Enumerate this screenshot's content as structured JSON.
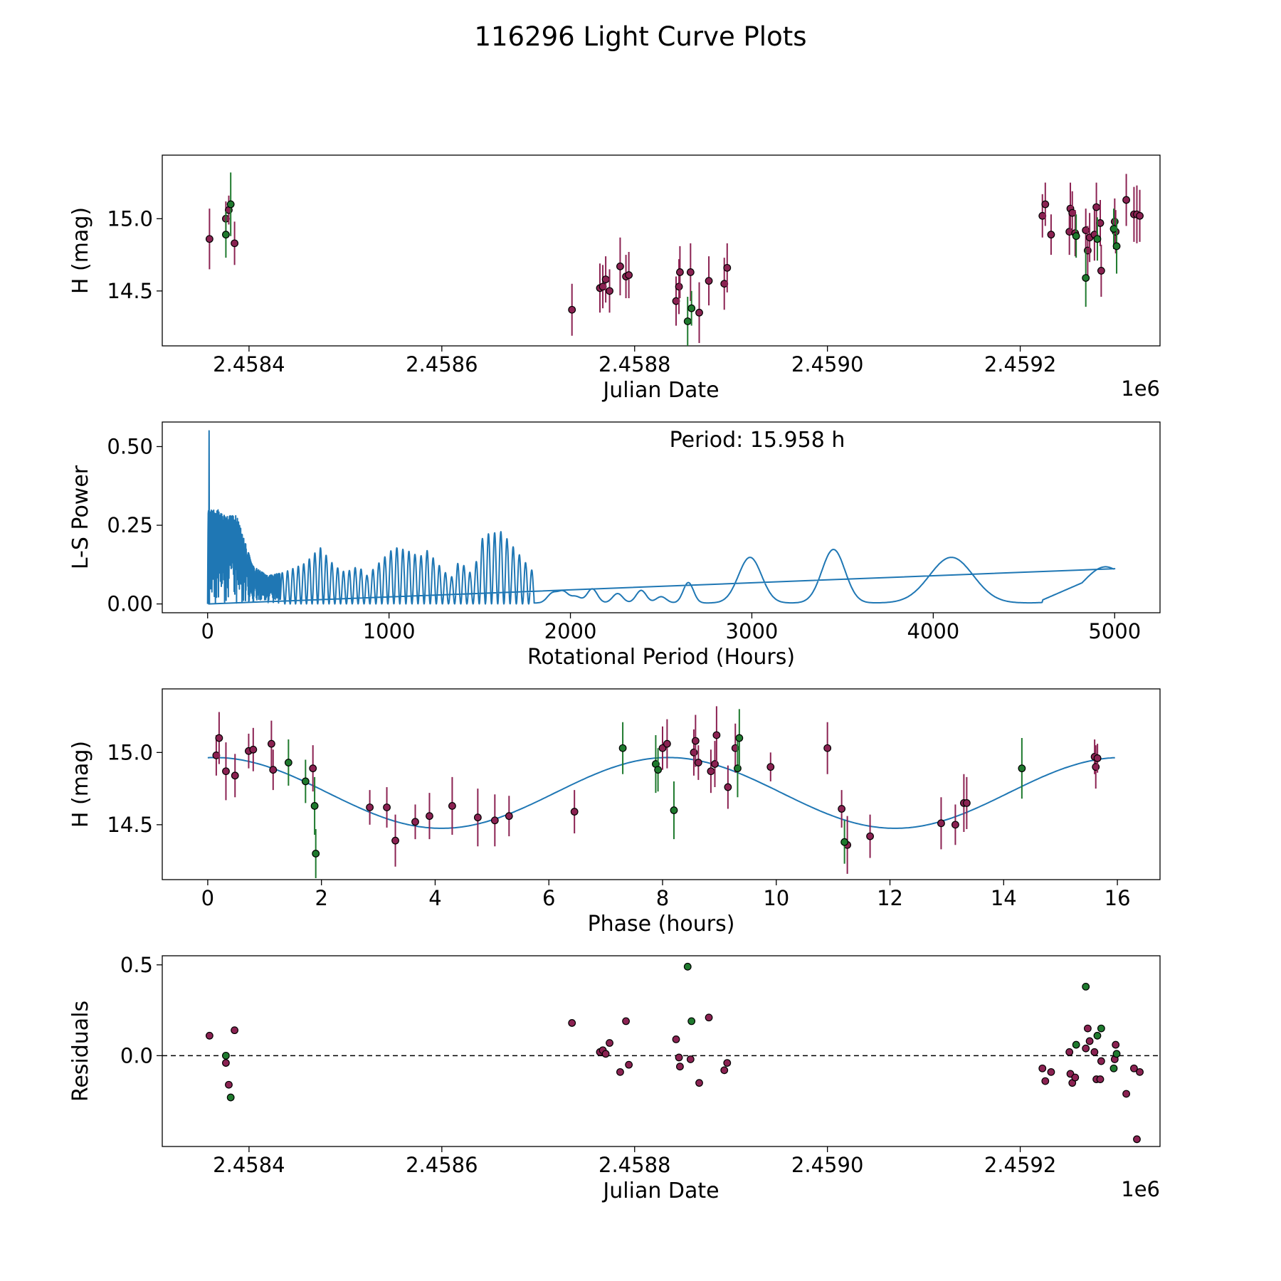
{
  "figure": {
    "title": "116296 Light Curve Plots",
    "colors": {
      "purple": "#8b2252",
      "green": "#1f7a2e",
      "line": "#1f77b4",
      "axis": "#000000"
    }
  },
  "chart_data": [
    {
      "id": "lightcurve",
      "type": "scatter",
      "title": "",
      "xlabel": "Julian Date",
      "ylabel": "H (mag)",
      "offset_label": "1e6",
      "xlim": [
        2458310,
        2459345
      ],
      "ylim": [
        14.12,
        15.44
      ],
      "xticks": [
        2458400,
        2458600,
        2458800,
        2459000,
        2459200
      ],
      "xtick_labels": [
        "2.4584",
        "2.4586",
        "2.4588",
        "2.4590",
        "2.4592"
      ],
      "yticks": [
        14.5,
        15.0
      ],
      "ytick_labels": [
        "14.5",
        "15.0"
      ],
      "series": [
        {
          "name": "purple",
          "points": [
            [
              2458359,
              14.86,
              0.21
            ],
            [
              2458376,
              15.0,
              0.12
            ],
            [
              2458379,
              15.06,
              0.1
            ],
            [
              2458385,
              14.83,
              0.15
            ],
            [
              2458735,
              14.37,
              0.18
            ],
            [
              2458764,
              14.52,
              0.17
            ],
            [
              2458767,
              14.53,
              0.15
            ],
            [
              2458770,
              14.58,
              0.16
            ],
            [
              2458774,
              14.5,
              0.15
            ],
            [
              2458785,
              14.67,
              0.2
            ],
            [
              2458791,
              14.6,
              0.15
            ],
            [
              2458794,
              14.61,
              0.16
            ],
            [
              2458843,
              14.43,
              0.17
            ],
            [
              2458846,
              14.53,
              0.19
            ],
            [
              2458847,
              14.63,
              0.18
            ],
            [
              2458858,
              14.63,
              0.2
            ],
            [
              2458867,
              14.35,
              0.21
            ],
            [
              2458877,
              14.57,
              0.17
            ],
            [
              2458893,
              14.55,
              0.18
            ],
            [
              2458896,
              14.66,
              0.17
            ],
            [
              2459223,
              15.02,
              0.15
            ],
            [
              2459226,
              15.1,
              0.15
            ],
            [
              2459232,
              14.89,
              0.14
            ],
            [
              2459251,
              14.91,
              0.16
            ],
            [
              2459252,
              15.07,
              0.18
            ],
            [
              2459254,
              15.04,
              0.15
            ],
            [
              2459257,
              14.9,
              0.16
            ],
            [
              2459268,
              14.92,
              0.15
            ],
            [
              2459270,
              14.78,
              0.17
            ],
            [
              2459272,
              14.87,
              0.17
            ],
            [
              2459277,
              14.89,
              0.18
            ],
            [
              2459279,
              15.08,
              0.17
            ],
            [
              2459283,
              14.97,
              0.16
            ],
            [
              2459284,
              14.64,
              0.18
            ],
            [
              2459298,
              14.98,
              0.16
            ],
            [
              2459299,
              14.91,
              0.15
            ],
            [
              2459310,
              15.13,
              0.18
            ],
            [
              2459318,
              15.03,
              0.19
            ],
            [
              2459321,
              15.03,
              0.2
            ],
            [
              2459324,
              15.02,
              0.18
            ]
          ]
        },
        {
          "name": "green",
          "points": [
            [
              2458376,
              14.89,
              0.16
            ],
            [
              2458381,
              15.1,
              0.22
            ],
            [
              2458855,
              14.29,
              0.17
            ],
            [
              2458859,
              14.38,
              0.12
            ],
            [
              2459258,
              14.88,
              0.15
            ],
            [
              2459268,
              14.59,
              0.2
            ],
            [
              2459280,
              14.86,
              0.15
            ],
            [
              2459297,
              14.93,
              0.14
            ],
            [
              2459300,
              14.81,
              0.19
            ]
          ]
        }
      ]
    },
    {
      "id": "periodogram",
      "type": "line",
      "title": "",
      "xlabel": "Rotational Period (Hours)",
      "ylabel": "L-S Power",
      "annotation": "Period: 15.958 h",
      "xlim": [
        -250,
        5250
      ],
      "ylim": [
        -0.028,
        0.578
      ],
      "xticks": [
        0,
        1000,
        2000,
        3000,
        4000,
        5000
      ],
      "xtick_labels": [
        "0",
        "1000",
        "2000",
        "3000",
        "4000",
        "5000"
      ],
      "yticks": [
        0.0,
        0.25,
        0.5
      ],
      "ytick_labels": [
        "0.00",
        "0.25",
        "0.50"
      ],
      "peak": {
        "x": 8,
        "y": 0.55
      },
      "peaks": [
        [
          60,
          0.3
        ],
        [
          100,
          0.28
        ],
        [
          160,
          0.28
        ],
        [
          250,
          0.12
        ],
        [
          330,
          0.09
        ],
        [
          420,
          0.1
        ],
        [
          540,
          0.13
        ],
        [
          620,
          0.18
        ],
        [
          700,
          0.12
        ],
        [
          760,
          0.1
        ],
        [
          830,
          0.12
        ],
        [
          880,
          0.09
        ],
        [
          960,
          0.14
        ],
        [
          1030,
          0.18
        ],
        [
          1100,
          0.17
        ],
        [
          1170,
          0.15
        ],
        [
          1210,
          0.17
        ],
        [
          1280,
          0.12
        ],
        [
          1340,
          0.08
        ],
        [
          1380,
          0.13
        ],
        [
          1420,
          0.12
        ],
        [
          1460,
          0.09
        ],
        [
          1520,
          0.22
        ],
        [
          1620,
          0.23
        ],
        [
          1740,
          0.14
        ],
        [
          1900,
          0.03
        ],
        [
          1960,
          0.035
        ],
        [
          2030,
          0.02
        ],
        [
          2120,
          0.045
        ],
        [
          2260,
          0.03
        ],
        [
          2390,
          0.04
        ],
        [
          2500,
          0.02
        ],
        [
          2650,
          0.065
        ],
        [
          2990,
          0.145
        ],
        [
          3450,
          0.17
        ],
        [
          4100,
          0.145
        ],
        [
          4950,
          0.115
        ]
      ],
      "curve_end": [
        5000,
        0.112
      ]
    },
    {
      "id": "phase",
      "type": "scatter",
      "title": "",
      "xlabel": "Phase (hours)",
      "ylabel": "H (mag)",
      "xlim": [
        -0.8,
        16.75
      ],
      "ylim": [
        14.12,
        15.44
      ],
      "xticks": [
        0,
        2,
        4,
        6,
        8,
        10,
        12,
        14,
        16
      ],
      "xtick_labels": [
        "0",
        "2",
        "4",
        "6",
        "8",
        "10",
        "12",
        "14",
        "16"
      ],
      "yticks": [
        14.5,
        15.0
      ],
      "ytick_labels": [
        "14.5",
        "15.0"
      ],
      "model": {
        "mean": 14.72,
        "amplitude": 0.245,
        "period": 7.979,
        "peak_phase": 8.1,
        "xrange": [
          0,
          15.958
        ]
      },
      "series": [
        {
          "name": "purple",
          "points": [
            [
              0.15,
              14.98,
              0.14
            ],
            [
              0.2,
              15.1,
              0.18
            ],
            [
              0.32,
              14.87,
              0.2
            ],
            [
              0.48,
              14.84,
              0.15
            ],
            [
              0.72,
              15.01,
              0.12
            ],
            [
              0.8,
              15.02,
              0.15
            ],
            [
              1.12,
              15.06,
              0.16
            ],
            [
              1.15,
              14.88,
              0.14
            ],
            [
              1.85,
              14.89,
              0.16
            ],
            [
              2.85,
              14.62,
              0.12
            ],
            [
              3.15,
              14.62,
              0.14
            ],
            [
              3.3,
              14.39,
              0.18
            ],
            [
              3.65,
              14.52,
              0.12
            ],
            [
              3.9,
              14.56,
              0.16
            ],
            [
              4.3,
              14.63,
              0.2
            ],
            [
              4.75,
              14.55,
              0.2
            ],
            [
              5.05,
              14.53,
              0.18
            ],
            [
              5.3,
              14.56,
              0.14
            ],
            [
              6.45,
              14.59,
              0.15
            ],
            [
              8.0,
              15.03,
              0.15
            ],
            [
              8.08,
              15.06,
              0.17
            ],
            [
              8.55,
              15.0,
              0.16
            ],
            [
              8.58,
              15.08,
              0.18
            ],
            [
              8.63,
              14.93,
              0.12
            ],
            [
              8.85,
              14.87,
              0.15
            ],
            [
              8.92,
              14.92,
              0.16
            ],
            [
              8.95,
              15.12,
              0.2
            ],
            [
              9.15,
              14.76,
              0.15
            ],
            [
              9.28,
              15.03,
              0.17
            ],
            [
              9.9,
              14.9,
              0.1
            ],
            [
              10.9,
              15.03,
              0.18
            ],
            [
              11.15,
              14.61,
              0.13
            ],
            [
              11.25,
              14.36,
              0.2
            ],
            [
              11.65,
              14.42,
              0.15
            ],
            [
              12.9,
              14.51,
              0.18
            ],
            [
              13.15,
              14.5,
              0.14
            ],
            [
              13.3,
              14.65,
              0.2
            ],
            [
              13.35,
              14.65,
              0.18
            ],
            [
              15.6,
              14.97,
              0.12
            ],
            [
              15.62,
              14.9,
              0.15
            ],
            [
              15.65,
              14.96,
              0.1
            ]
          ]
        },
        {
          "name": "green",
          "points": [
            [
              1.42,
              14.93,
              0.16
            ],
            [
              1.72,
              14.8,
              0.15
            ],
            [
              1.88,
              14.63,
              0.2
            ],
            [
              1.9,
              14.3,
              0.17
            ],
            [
              7.3,
              15.03,
              0.18
            ],
            [
              7.88,
              14.92,
              0.2
            ],
            [
              7.92,
              14.88,
              0.15
            ],
            [
              8.2,
              14.6,
              0.2
            ],
            [
              9.32,
              14.89,
              0.2
            ],
            [
              9.35,
              15.1,
              0.2
            ],
            [
              11.2,
              14.38,
              0.15
            ],
            [
              14.32,
              14.89,
              0.21
            ]
          ]
        }
      ]
    },
    {
      "id": "residuals",
      "type": "scatter",
      "title": "",
      "xlabel": "Julian Date",
      "ylabel": "Residuals",
      "offset_label": "1e6",
      "xlim": [
        2458310,
        2459345
      ],
      "ylim": [
        -0.5,
        0.55
      ],
      "xticks": [
        2458400,
        2458600,
        2458800,
        2459000,
        2459200
      ],
      "xtick_labels": [
        "2.4584",
        "2.4586",
        "2.4588",
        "2.4590",
        "2.4592"
      ],
      "yticks": [
        0.0,
        0.5
      ],
      "ytick_labels": [
        "0.0",
        "0.5"
      ],
      "zero_line": 0.0,
      "series": [
        {
          "name": "purple",
          "points": [
            [
              2458359,
              0.11
            ],
            [
              2458376,
              -0.04
            ],
            [
              2458379,
              -0.16
            ],
            [
              2458385,
              0.14
            ],
            [
              2458735,
              0.18
            ],
            [
              2458764,
              0.02
            ],
            [
              2458767,
              0.03
            ],
            [
              2458770,
              0.01
            ],
            [
              2458774,
              0.07
            ],
            [
              2458785,
              -0.09
            ],
            [
              2458791,
              0.19
            ],
            [
              2458794,
              -0.05
            ],
            [
              2458843,
              0.09
            ],
            [
              2458846,
              -0.01
            ],
            [
              2458847,
              -0.06
            ],
            [
              2458858,
              -0.02
            ],
            [
              2458867,
              -0.15
            ],
            [
              2458877,
              0.21
            ],
            [
              2458893,
              -0.08
            ],
            [
              2458896,
              -0.04
            ],
            [
              2459223,
              -0.07
            ],
            [
              2459226,
              -0.14
            ],
            [
              2459232,
              -0.09
            ],
            [
              2459251,
              0.02
            ],
            [
              2459252,
              -0.1
            ],
            [
              2459254,
              -0.15
            ],
            [
              2459257,
              -0.12
            ],
            [
              2459268,
              0.04
            ],
            [
              2459270,
              0.15
            ],
            [
              2459272,
              0.08
            ],
            [
              2459277,
              0.02
            ],
            [
              2459279,
              -0.13
            ],
            [
              2459283,
              -0.13
            ],
            [
              2459284,
              -0.03
            ],
            [
              2459298,
              -0.02
            ],
            [
              2459299,
              0.06
            ],
            [
              2459310,
              -0.21
            ],
            [
              2459318,
              -0.07
            ],
            [
              2459321,
              -0.46
            ],
            [
              2459324,
              -0.09
            ]
          ]
        },
        {
          "name": "green",
          "points": [
            [
              2458376,
              0.0
            ],
            [
              2458381,
              -0.23
            ],
            [
              2458855,
              0.49
            ],
            [
              2458859,
              0.19
            ],
            [
              2459258,
              0.06
            ],
            [
              2459268,
              0.38
            ],
            [
              2459280,
              0.11
            ],
            [
              2459284,
              0.15
            ],
            [
              2459297,
              -0.07
            ],
            [
              2459300,
              0.01
            ]
          ]
        }
      ]
    }
  ]
}
